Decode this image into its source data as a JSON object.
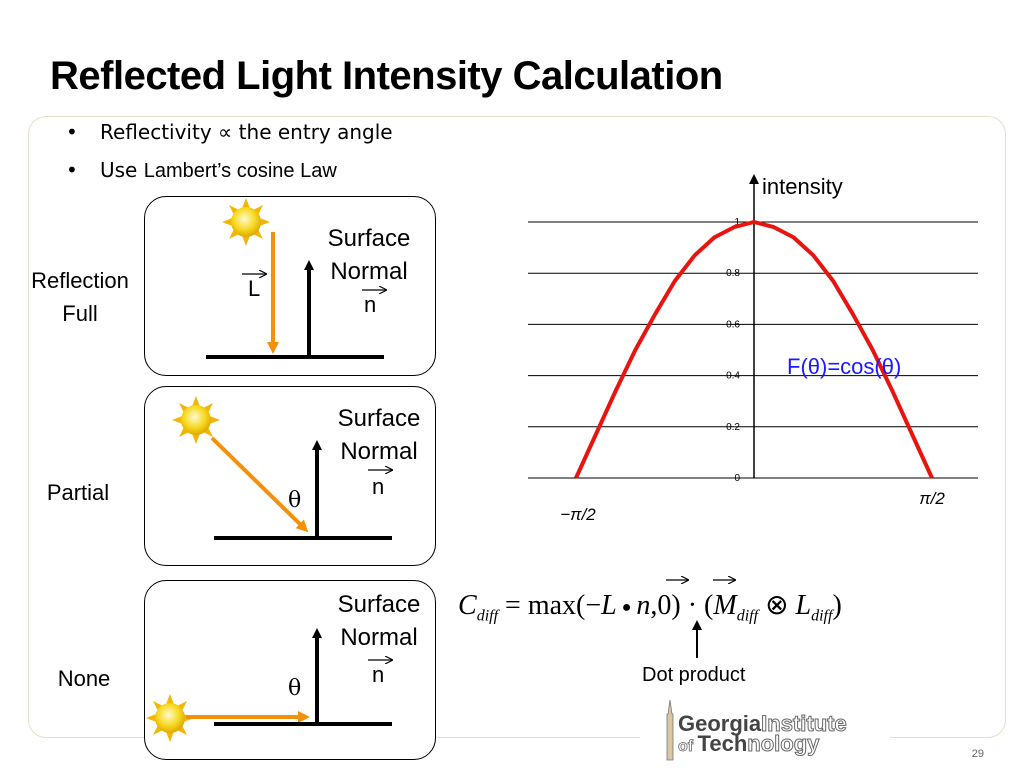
{
  "title": "Reflected Light Intensity Calculation",
  "bullets": [
    {
      "prefix": "Reflectivity ",
      "symbol": "∝",
      "suffix": " the entry angle"
    },
    {
      "prefix": "Use ",
      "emph": "Lambert’s cosine Law"
    }
  ],
  "rows": [
    {
      "label_line1": "Reflection",
      "label_line2": "Full",
      "surface": "Surface",
      "normal": "Normal",
      "vec_L": "L",
      "vec_n": "n"
    },
    {
      "label": "Partial",
      "surface": "Surface",
      "normal": "Normal",
      "vec_n": "n",
      "theta": "θ"
    },
    {
      "label": "None",
      "surface": "Surface",
      "normal": "Normal",
      "vec_n": "n",
      "theta": "θ"
    }
  ],
  "chart_data": {
    "type": "line",
    "ylabel": "intensity",
    "x_tick_labels": [
      "−π/2",
      "π/2"
    ],
    "y_ticks": [
      "0",
      "0.2",
      "0.4",
      "0.6",
      "0.8",
      "1"
    ],
    "ylim": [
      0,
      1
    ],
    "xlim": [
      -1.5708,
      1.5708
    ],
    "grid": true,
    "annotation": "F(θ)=cos(θ)",
    "series": [
      {
        "color": "#e8140f",
        "x": [
          -1.5708,
          -1.3963,
          -1.2217,
          -1.0472,
          -0.8727,
          -0.6981,
          -0.5236,
          -0.3491,
          -0.1745,
          0,
          0.1745,
          0.3491,
          0.5236,
          0.6981,
          0.8727,
          1.0472,
          1.2217,
          1.3963,
          1.5708
        ],
        "y": [
          0,
          0.17,
          0.34,
          0.5,
          0.64,
          0.77,
          0.87,
          0.94,
          0.98,
          1,
          0.98,
          0.94,
          0.87,
          0.77,
          0.64,
          0.5,
          0.34,
          0.17,
          0
        ]
      }
    ]
  },
  "formula": {
    "lhs": "C",
    "lhs_sub": "diff",
    "eq": " = max(−",
    "L": "L",
    "dot": "●",
    "n": "n",
    "mid": ",0) · (",
    "M": "M",
    "M_sub": "diff",
    "otimes": " ⊗ ",
    "L2": "L",
    "L2_sub": "diff",
    "end": ")"
  },
  "dot_product_label": "Dot product",
  "logo": {
    "line1_bold": "Georgia",
    "line1_rest": "Institute",
    "line2_small": "of ",
    "line2_bold": "Tech",
    "line2_rest": "nology"
  },
  "page_number": "29",
  "colors": {
    "curve": "#e8140f",
    "annotation": "#1a1aff",
    "light_ray": "#f5900a",
    "sun": "#f7d820"
  }
}
